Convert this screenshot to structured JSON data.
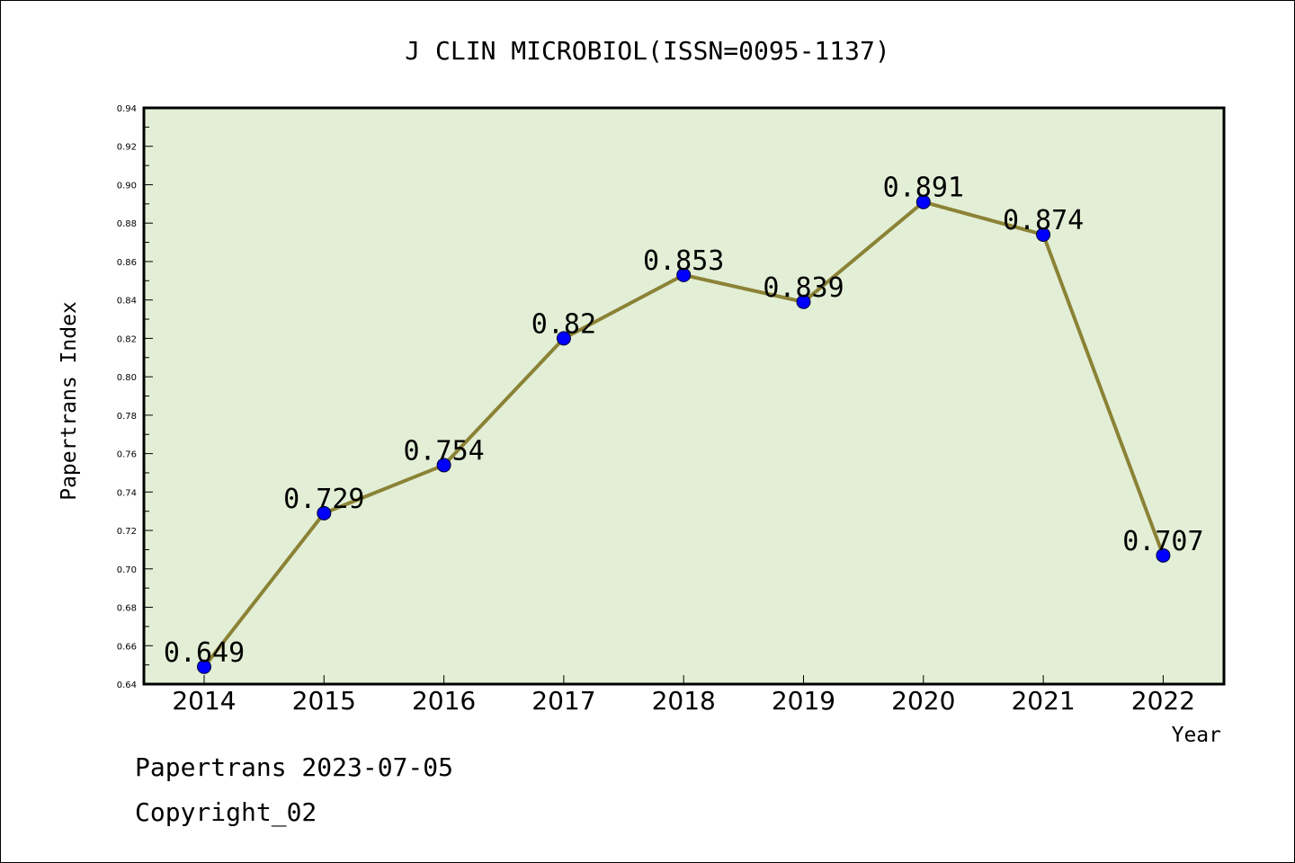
{
  "chart_data": {
    "type": "line",
    "title": "J CLIN MICROBIOL(ISSN=0095-1137)",
    "xlabel": "Year",
    "ylabel": "Papertrans Index",
    "categories": [
      "2014",
      "2015",
      "2016",
      "2017",
      "2018",
      "2019",
      "2020",
      "2021",
      "2022"
    ],
    "series": [
      {
        "values": [
          0.649,
          0.729,
          0.754,
          0.82,
          0.853,
          0.839,
          0.891,
          0.874,
          0.707
        ]
      }
    ],
    "data_labels": [
      "0.649",
      "0.729",
      "0.754",
      "0.82",
      "0.853",
      "0.839",
      "0.891",
      "0.874",
      "0.707"
    ],
    "ylim": [
      0.64,
      0.94
    ],
    "yticks": [
      "0.64",
      "0.66",
      "0.68",
      "0.70",
      "0.72",
      "0.74",
      "0.76",
      "0.78",
      "0.80",
      "0.82",
      "0.84",
      "0.86",
      "0.88",
      "0.90",
      "0.92",
      "0.94"
    ],
    "grid": false,
    "legend": "none"
  },
  "footer": {
    "line1": "Papertrans 2023-07-05",
    "line2": "Copyright_02"
  },
  "colors": {
    "plot_background": "#e2efd6",
    "line": "#8b8236",
    "marker": "#0000ff"
  }
}
